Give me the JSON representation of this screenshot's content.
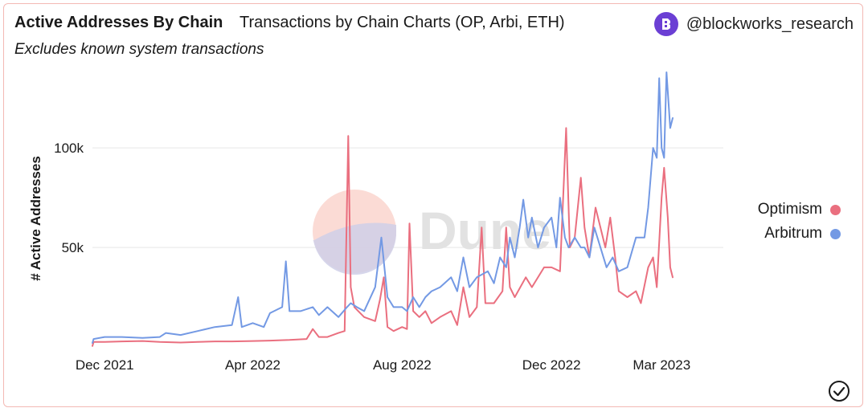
{
  "header": {
    "title": "Active Addresses By Chain",
    "subtitle": "Transactions by Chain Charts (OP, Arbi, ETH)",
    "note": "Excludes known system transactions",
    "author": "@blockworks_research"
  },
  "watermark": "Dune",
  "colors": {
    "optimism": "#ea6f7f",
    "arbitrum": "#7399e4",
    "gridline": "#e6e6e6",
    "border": "#f3b9b4",
    "author_icon": "#6b3fd4"
  },
  "icons": {
    "author": "blockworks-logo-icon",
    "status": "check-circle-icon"
  },
  "chart_data": {
    "type": "line",
    "title": "Active Addresses By Chain",
    "xlabel": "",
    "ylabel": "# Active Addresses",
    "x_range": [
      "2021-11-21",
      "2023-03-12"
    ],
    "ylim": [
      0,
      140000
    ],
    "y_ticks": [
      50000,
      100000
    ],
    "y_tick_labels": [
      "50k",
      "100k"
    ],
    "x_ticks": [
      "2021-12-01",
      "2022-04-01",
      "2022-08-01",
      "2022-12-01",
      "2023-03-01"
    ],
    "x_tick_labels": [
      "Dec 2021",
      "Apr 2022",
      "Aug 2022",
      "Dec 2022",
      "Mar 2023"
    ],
    "grid": true,
    "legend_position": "right",
    "series": [
      {
        "name": "Optimism",
        "color": "#ea6f7f",
        "points": [
          [
            "2021-11-21",
            500
          ],
          [
            "2021-11-22",
            2500
          ],
          [
            "2021-12-01",
            2500
          ],
          [
            "2021-12-15",
            2800
          ],
          [
            "2022-01-01",
            3000
          ],
          [
            "2022-01-15",
            2500
          ],
          [
            "2022-02-01",
            2200
          ],
          [
            "2022-02-15",
            2500
          ],
          [
            "2022-03-01",
            2800
          ],
          [
            "2022-03-15",
            2800
          ],
          [
            "2022-04-01",
            3000
          ],
          [
            "2022-04-15",
            3200
          ],
          [
            "2022-05-01",
            3500
          ],
          [
            "2022-05-15",
            4000
          ],
          [
            "2022-05-20",
            9000
          ],
          [
            "2022-05-25",
            5000
          ],
          [
            "2022-06-01",
            5000
          ],
          [
            "2022-06-10",
            7000
          ],
          [
            "2022-06-15",
            8000
          ],
          [
            "2022-06-18",
            106000
          ],
          [
            "2022-06-20",
            30000
          ],
          [
            "2022-06-23",
            20000
          ],
          [
            "2022-07-01",
            15000
          ],
          [
            "2022-07-10",
            13000
          ],
          [
            "2022-07-14",
            24000
          ],
          [
            "2022-07-17",
            35000
          ],
          [
            "2022-07-20",
            10000
          ],
          [
            "2022-07-25",
            8000
          ],
          [
            "2022-08-01",
            10000
          ],
          [
            "2022-08-05",
            9000
          ],
          [
            "2022-08-07",
            62000
          ],
          [
            "2022-08-10",
            18000
          ],
          [
            "2022-08-15",
            15000
          ],
          [
            "2022-08-20",
            18000
          ],
          [
            "2022-08-25",
            12000
          ],
          [
            "2022-09-01",
            15000
          ],
          [
            "2022-09-10",
            18000
          ],
          [
            "2022-09-15",
            11000
          ],
          [
            "2022-09-20",
            30000
          ],
          [
            "2022-09-25",
            15000
          ],
          [
            "2022-10-01",
            20000
          ],
          [
            "2022-10-05",
            60000
          ],
          [
            "2022-10-08",
            22000
          ],
          [
            "2022-10-15",
            22000
          ],
          [
            "2022-10-22",
            28000
          ],
          [
            "2022-10-25",
            60000
          ],
          [
            "2022-10-28",
            30000
          ],
          [
            "2022-11-01",
            25000
          ],
          [
            "2022-11-10",
            35000
          ],
          [
            "2022-11-15",
            30000
          ],
          [
            "2022-11-25",
            40000
          ],
          [
            "2022-12-01",
            40000
          ],
          [
            "2022-12-08",
            38000
          ],
          [
            "2022-12-13",
            110000
          ],
          [
            "2022-12-16",
            50000
          ],
          [
            "2022-12-20",
            55000
          ],
          [
            "2022-12-25",
            85000
          ],
          [
            "2022-12-28",
            60000
          ],
          [
            "2023-01-01",
            45000
          ],
          [
            "2023-01-06",
            70000
          ],
          [
            "2023-01-10",
            60000
          ],
          [
            "2023-01-14",
            50000
          ],
          [
            "2023-01-18",
            65000
          ],
          [
            "2023-01-22",
            45000
          ],
          [
            "2023-01-25",
            28000
          ],
          [
            "2023-02-01",
            25000
          ],
          [
            "2023-02-08",
            28000
          ],
          [
            "2023-02-12",
            22000
          ],
          [
            "2023-02-18",
            40000
          ],
          [
            "2023-02-22",
            45000
          ],
          [
            "2023-02-25",
            30000
          ],
          [
            "2023-03-01",
            75000
          ],
          [
            "2023-03-03",
            90000
          ],
          [
            "2023-03-06",
            65000
          ],
          [
            "2023-03-08",
            40000
          ],
          [
            "2023-03-10",
            35000
          ]
        ]
      },
      {
        "name": "Arbitrum",
        "color": "#7399e4",
        "points": [
          [
            "2021-11-21",
            2000
          ],
          [
            "2021-11-22",
            4000
          ],
          [
            "2021-12-01",
            5000
          ],
          [
            "2021-12-15",
            5000
          ],
          [
            "2022-01-01",
            4500
          ],
          [
            "2022-01-15",
            5000
          ],
          [
            "2022-01-20",
            7000
          ],
          [
            "2022-02-01",
            6000
          ],
          [
            "2022-02-15",
            8000
          ],
          [
            "2022-03-01",
            10000
          ],
          [
            "2022-03-15",
            11000
          ],
          [
            "2022-03-20",
            25000
          ],
          [
            "2022-03-23",
            10000
          ],
          [
            "2022-04-01",
            12000
          ],
          [
            "2022-04-10",
            10000
          ],
          [
            "2022-04-15",
            17000
          ],
          [
            "2022-04-25",
            20000
          ],
          [
            "2022-04-28",
            43000
          ],
          [
            "2022-05-01",
            18000
          ],
          [
            "2022-05-10",
            18000
          ],
          [
            "2022-05-20",
            20000
          ],
          [
            "2022-05-25",
            16000
          ],
          [
            "2022-06-01",
            20000
          ],
          [
            "2022-06-10",
            15000
          ],
          [
            "2022-06-17",
            20000
          ],
          [
            "2022-06-20",
            22000
          ],
          [
            "2022-06-25",
            20000
          ],
          [
            "2022-07-01",
            18000
          ],
          [
            "2022-07-10",
            30000
          ],
          [
            "2022-07-15",
            55000
          ],
          [
            "2022-07-20",
            25000
          ],
          [
            "2022-07-25",
            20000
          ],
          [
            "2022-08-01",
            20000
          ],
          [
            "2022-08-05",
            18000
          ],
          [
            "2022-08-10",
            25000
          ],
          [
            "2022-08-15",
            20000
          ],
          [
            "2022-08-20",
            25000
          ],
          [
            "2022-08-25",
            28000
          ],
          [
            "2022-09-01",
            30000
          ],
          [
            "2022-09-10",
            35000
          ],
          [
            "2022-09-15",
            28000
          ],
          [
            "2022-09-20",
            45000
          ],
          [
            "2022-09-25",
            30000
          ],
          [
            "2022-10-01",
            35000
          ],
          [
            "2022-10-10",
            38000
          ],
          [
            "2022-10-15",
            32000
          ],
          [
            "2022-10-20",
            45000
          ],
          [
            "2022-10-25",
            40000
          ],
          [
            "2022-10-28",
            55000
          ],
          [
            "2022-11-01",
            45000
          ],
          [
            "2022-11-05",
            60000
          ],
          [
            "2022-11-08",
            74000
          ],
          [
            "2022-11-12",
            55000
          ],
          [
            "2022-11-15",
            65000
          ],
          [
            "2022-11-20",
            50000
          ],
          [
            "2022-11-25",
            60000
          ],
          [
            "2022-12-01",
            65000
          ],
          [
            "2022-12-05",
            50000
          ],
          [
            "2022-12-08",
            75000
          ],
          [
            "2022-12-12",
            55000
          ],
          [
            "2022-12-15",
            50000
          ],
          [
            "2022-12-20",
            55000
          ],
          [
            "2022-12-25",
            50000
          ],
          [
            "2022-12-28",
            50000
          ],
          [
            "2023-01-01",
            45000
          ],
          [
            "2023-01-05",
            60000
          ],
          [
            "2023-01-10",
            50000
          ],
          [
            "2023-01-15",
            40000
          ],
          [
            "2023-01-20",
            45000
          ],
          [
            "2023-01-25",
            38000
          ],
          [
            "2023-02-01",
            40000
          ],
          [
            "2023-02-08",
            55000
          ],
          [
            "2023-02-15",
            55000
          ],
          [
            "2023-02-18",
            70000
          ],
          [
            "2023-02-22",
            100000
          ],
          [
            "2023-02-25",
            95000
          ],
          [
            "2023-02-27",
            135000
          ],
          [
            "2023-03-01",
            100000
          ],
          [
            "2023-03-03",
            95000
          ],
          [
            "2023-03-05",
            138000
          ],
          [
            "2023-03-08",
            110000
          ],
          [
            "2023-03-10",
            115000
          ]
        ]
      }
    ]
  }
}
